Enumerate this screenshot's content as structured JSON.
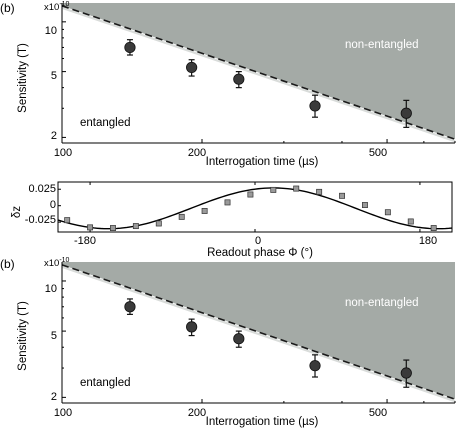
{
  "colors": {
    "shade": "#a4aaa6",
    "marker": "#3a3a3a",
    "axis": "#000000",
    "dash": "#1a1a1a"
  },
  "chart_data": [
    {
      "panel": "(b)",
      "type": "scatter",
      "exponent_label": "x10",
      "exponent_sup": "-10",
      "xlabel": "Interrogation time (µs)",
      "ylabel": "Sensitivity (T)",
      "xscale": "log",
      "yscale": "log",
      "xlim": [
        100,
        700
      ],
      "ylim": [
        1.85,
        13
      ],
      "xticks": [
        100,
        200,
        500
      ],
      "xtick_labels": [
        "100",
        "200",
        "500"
      ],
      "yticks": [
        2,
        5,
        10
      ],
      "ytick_labels": [
        "2",
        "5",
        "10"
      ],
      "boundary": {
        "style": "dashed",
        "x": [
          100,
          700
        ],
        "y": [
          12.5,
          1.95
        ]
      },
      "region_labels": {
        "upper": "non-entangled",
        "lower": "entangled"
      },
      "series": [
        {
          "x": [
            140,
            190,
            240,
            350,
            550
          ],
          "y": [
            7.0,
            5.3,
            4.5,
            3.1,
            2.8
          ],
          "yerr_low": [
            0.7,
            0.6,
            0.5,
            0.45,
            0.5
          ],
          "yerr_high": [
            0.8,
            0.6,
            0.5,
            0.5,
            0.55
          ]
        }
      ]
    },
    {
      "type": "scatter",
      "xlabel": "Readout phase Φ (°)",
      "ylabel": "δz",
      "xlim": [
        -215,
        215
      ],
      "ylim": [
        -0.04,
        0.036
      ],
      "xticks": [
        -180,
        0,
        180
      ],
      "xtick_labels": [
        "-180",
        "0",
        "180"
      ],
      "yticks": [
        0.025,
        0,
        -0.025
      ],
      "ytick_labels": [
        "0.025",
        "0",
        "-0.025"
      ],
      "fit": {
        "style": "solid",
        "amplitude": 0.031,
        "offset": -0.004,
        "peak_phase": 20
      },
      "series": [
        {
          "x": [
            -205,
            -180,
            -155,
            -130,
            -105,
            -80,
            -55,
            -30,
            -5,
            20,
            45,
            70,
            95,
            120,
            145,
            170,
            195
          ],
          "y": [
            -0.022,
            -0.033,
            -0.034,
            -0.031,
            -0.027,
            -0.017,
            -0.008,
            0.005,
            0.017,
            0.024,
            0.026,
            0.021,
            0.015,
            0.001,
            -0.01,
            -0.024,
            -0.034
          ],
          "yerr": 0.003
        }
      ]
    },
    {
      "panel": "(b)",
      "type": "scatter",
      "exponent_label": "x10",
      "exponent_sup": "-10",
      "xlabel": "Interrogation time (µs)",
      "ylabel": "Sensitivity (T)",
      "xscale": "log",
      "yscale": "log",
      "xlim": [
        100,
        700
      ],
      "ylim": [
        1.85,
        13
      ],
      "xticks": [
        100,
        200,
        500
      ],
      "xtick_labels": [
        "100",
        "200",
        "500"
      ],
      "yticks": [
        2,
        5,
        10
      ],
      "ytick_labels": [
        "2",
        "5",
        "10"
      ],
      "boundary": {
        "style": "dashed",
        "x": [
          100,
          700
        ],
        "y": [
          12.5,
          1.95
        ]
      },
      "region_labels": {
        "upper": "non-entangled",
        "lower": "entangled"
      },
      "series": [
        {
          "x": [
            140,
            190,
            240,
            350,
            550
          ],
          "y": [
            7.0,
            5.3,
            4.5,
            3.1,
            2.8
          ],
          "yerr_low": [
            0.7,
            0.6,
            0.5,
            0.45,
            0.5
          ],
          "yerr_high": [
            0.8,
            0.6,
            0.5,
            0.5,
            0.55
          ]
        }
      ]
    }
  ]
}
